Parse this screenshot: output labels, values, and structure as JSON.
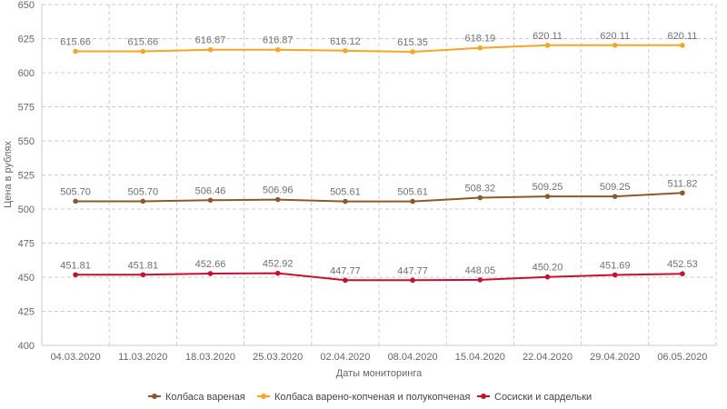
{
  "chart_data": {
    "type": "line",
    "xlabel": "Даты мониторинга",
    "ylabel": "Цена в рублях",
    "ylim": [
      400,
      650
    ],
    "yticks": [
      400,
      425,
      450,
      475,
      500,
      525,
      550,
      575,
      600,
      625,
      650
    ],
    "grid": true,
    "legend_position": "bottom",
    "categories": [
      "04.03.2020",
      "11.03.2020",
      "18.03.2020",
      "25.03.2020",
      "02.04.2020",
      "08.04.2020",
      "15.04.2020",
      "22.04.2020",
      "29.04.2020",
      "06.05.2020"
    ],
    "series": [
      {
        "name": "Колбаса вареная",
        "color": "#8B5A2B",
        "values": [
          505.7,
          505.7,
          506.46,
          506.96,
          505.61,
          505.61,
          508.32,
          509.25,
          509.25,
          511.82
        ],
        "labels": [
          "505.70",
          "505.70",
          "506.46",
          "506.96",
          "505.61",
          "505.61",
          "508.32",
          "509.25",
          "509.25",
          "511.82"
        ]
      },
      {
        "name": "Колбаса варено-копченая и полукопченая",
        "color": "#F5A623",
        "values": [
          615.66,
          615.66,
          616.87,
          616.87,
          616.12,
          615.35,
          618.19,
          620.11,
          620.11,
          620.11
        ],
        "labels": [
          "615.66",
          "615.66",
          "616.87",
          "616.87",
          "616.12",
          "615.35",
          "618.19",
          "620.11",
          "620.11",
          "620.11"
        ]
      },
      {
        "name": "Сосиски и сардельки",
        "color": "#C8102E",
        "values": [
          451.81,
          451.81,
          452.66,
          452.92,
          447.77,
          447.77,
          448.05,
          450.2,
          451.69,
          452.53
        ],
        "labels": [
          "451.81",
          "451.81",
          "452.66",
          "452.92",
          "447.77",
          "447.77",
          "448.05",
          "450.20",
          "451.69",
          "452.53"
        ]
      }
    ]
  }
}
